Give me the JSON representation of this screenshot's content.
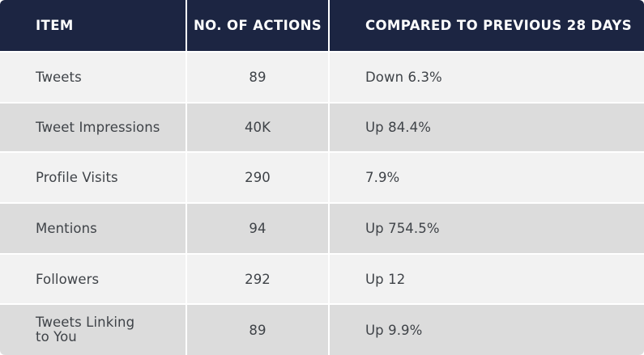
{
  "table": {
    "headers": [
      "ITEM",
      "NO. OF ACTIONS",
      "COMPARED TO PREVIOUS 28 DAYS"
    ],
    "rows": [
      {
        "item": "Tweets",
        "actions": "89",
        "compared": "Down 6.3%"
      },
      {
        "item": "Tweet Impressions",
        "actions": "40K",
        "compared": "Up 84.4%"
      },
      {
        "item": "Profile Visits",
        "actions": "290",
        "compared": "7.9%"
      },
      {
        "item": "Mentions",
        "actions": "94",
        "compared": "Up 754.5%"
      },
      {
        "item": "Followers",
        "actions": "292",
        "compared": "Up 12"
      },
      {
        "item_line1": "Tweets Linking",
        "item_line2": "to You",
        "actions": "89",
        "compared": "Up 9.9%"
      }
    ]
  },
  "colors": {
    "header_bg": "#1c2542",
    "row_light": "#f2f2f2",
    "row_dark": "#dcdcdc",
    "text": "#3f4348"
  }
}
